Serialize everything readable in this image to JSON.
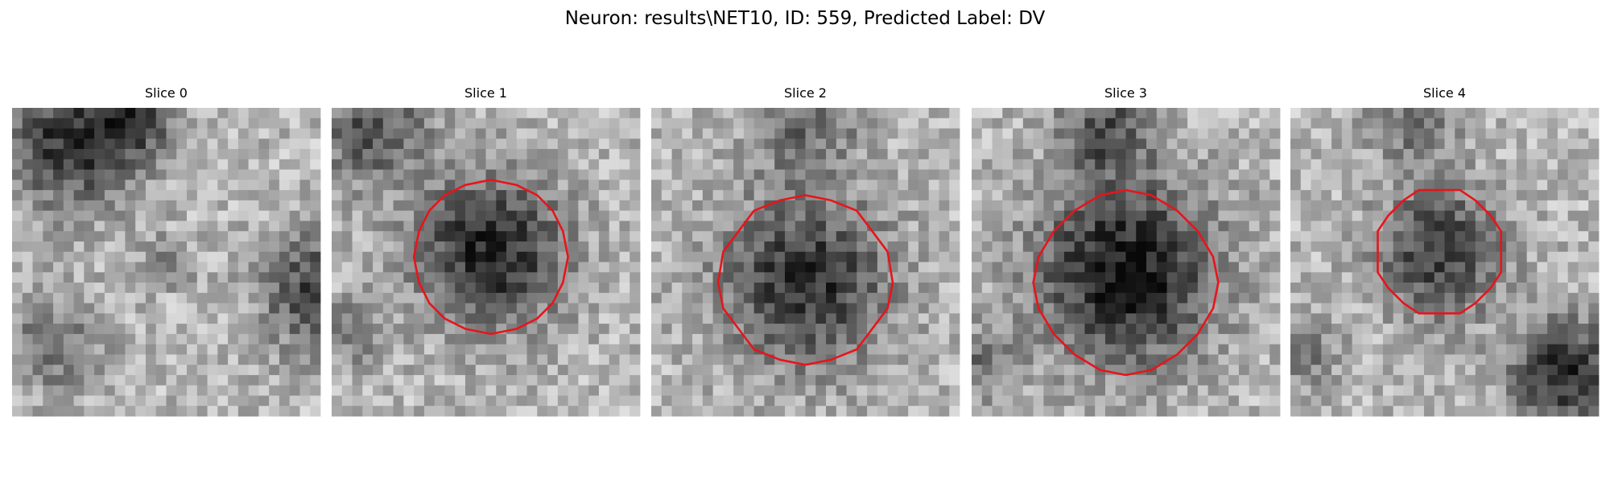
{
  "title": "Neuron: results\\NET10, ID: 559, Predicted Label: DV",
  "panels": [
    {
      "title": "Slice 0"
    },
    {
      "title": "Slice 1"
    },
    {
      "title": "Slice 2"
    },
    {
      "title": "Slice 3"
    },
    {
      "title": "Slice 4"
    }
  ]
}
